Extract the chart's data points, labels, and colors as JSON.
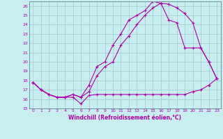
{
  "xlabel": "Windchill (Refroidissement éolien,°C)",
  "bg_color": "#c8eef0",
  "grid_color": "#a0c8d0",
  "line_color": "#aa00aa",
  "xmin": -0.5,
  "xmax": 23.5,
  "ymin": 15,
  "ymax": 26.5,
  "yticks": [
    15,
    16,
    17,
    18,
    19,
    20,
    21,
    22,
    23,
    24,
    25,
    26
  ],
  "xticks": [
    0,
    1,
    2,
    3,
    4,
    5,
    6,
    7,
    8,
    9,
    10,
    11,
    12,
    13,
    14,
    15,
    16,
    17,
    18,
    19,
    20,
    21,
    22,
    23
  ],
  "line1_x": [
    0,
    1,
    2,
    3,
    4,
    5,
    6,
    7,
    8,
    9,
    10,
    11,
    12,
    13,
    14,
    15,
    16,
    17,
    18,
    19,
    20,
    21,
    22,
    23
  ],
  "line1_y": [
    17.8,
    17.0,
    16.5,
    16.2,
    16.2,
    16.2,
    15.5,
    16.4,
    16.5,
    16.5,
    16.5,
    16.5,
    16.5,
    16.5,
    16.5,
    16.5,
    16.5,
    16.5,
    16.5,
    16.5,
    16.8,
    17.0,
    17.5,
    18.2
  ],
  "line2_x": [
    0,
    1,
    2,
    3,
    4,
    5,
    6,
    7,
    8,
    9,
    10,
    11,
    12,
    13,
    14,
    15,
    16,
    17,
    18,
    19,
    20,
    21,
    22,
    23
  ],
  "line2_y": [
    17.8,
    17.0,
    16.5,
    16.2,
    16.2,
    16.5,
    16.2,
    16.8,
    18.5,
    19.5,
    20.0,
    21.8,
    22.8,
    24.0,
    25.0,
    25.8,
    26.3,
    24.5,
    24.2,
    21.5,
    21.5,
    21.5,
    20.0,
    18.2
  ],
  "line3_x": [
    0,
    1,
    2,
    3,
    4,
    5,
    6,
    7,
    8,
    9,
    10,
    11,
    12,
    13,
    14,
    15,
    16,
    17,
    18,
    19,
    20,
    21,
    22,
    23
  ],
  "line3_y": [
    17.8,
    17.0,
    16.5,
    16.2,
    16.2,
    16.5,
    16.2,
    17.5,
    19.5,
    20.0,
    21.8,
    23.0,
    24.5,
    25.0,
    25.5,
    26.5,
    26.3,
    26.2,
    25.8,
    25.2,
    24.2,
    21.5,
    20.0,
    18.2
  ]
}
